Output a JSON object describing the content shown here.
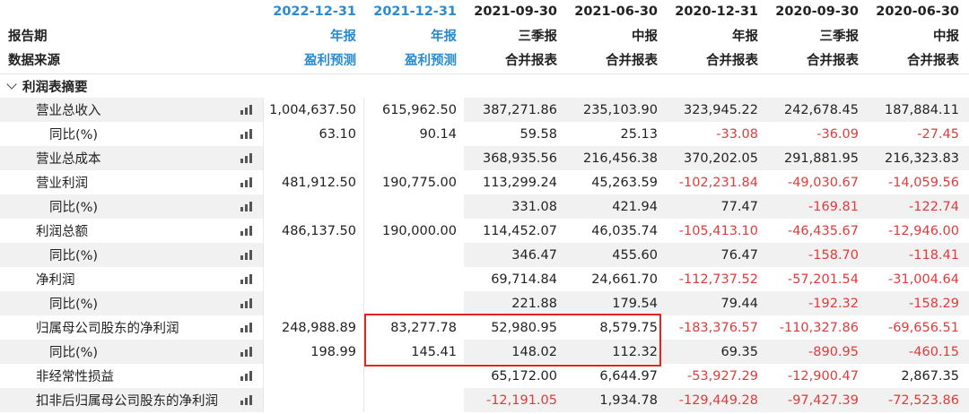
{
  "header": {
    "row_labels": [
      "报告期",
      "数据来源"
    ],
    "columns": [
      {
        "date": "2022-12-31",
        "period": "年报",
        "source": "盈利预测",
        "date_color": "#2a8bd0"
      },
      {
        "date": "2021-12-31",
        "period": "年报",
        "source": "盈利预测",
        "date_color": "#2a8bd0"
      },
      {
        "date": "2021-09-30",
        "period": "三季报",
        "source": "合并报表",
        "date_color": "#222222"
      },
      {
        "date": "2021-06-30",
        "period": "中报",
        "source": "合并报表",
        "date_color": "#222222"
      },
      {
        "date": "2020-12-31",
        "period": "年报",
        "source": "合并报表",
        "date_color": "#222222"
      },
      {
        "date": "2020-09-30",
        "period": "三季报",
        "source": "合并报表",
        "date_color": "#222222"
      },
      {
        "date": "2020-06-30",
        "period": "中报",
        "source": "合并报表",
        "date_color": "#222222"
      }
    ]
  },
  "section": {
    "title": "利润表摘要"
  },
  "rows": [
    {
      "label": "营业总收入",
      "indent": 1,
      "values": [
        "1,004,637.50",
        "615,962.50",
        "387,271.86",
        "235,103.90",
        "323,945.22",
        "242,678.45",
        "187,884.11"
      ]
    },
    {
      "label": "同比(%)",
      "indent": 2,
      "values": [
        "63.10",
        "90.14",
        "59.58",
        "25.13",
        "-33.08",
        "-36.09",
        "-27.45"
      ]
    },
    {
      "label": "营业总成本",
      "indent": 1,
      "values": [
        "",
        "",
        "368,935.56",
        "216,456.38",
        "370,202.05",
        "291,881.95",
        "216,323.83"
      ]
    },
    {
      "label": "营业利润",
      "indent": 1,
      "values": [
        "481,912.50",
        "190,775.00",
        "113,299.24",
        "45,263.59",
        "-102,231.84",
        "-49,030.67",
        "-14,059.56"
      ]
    },
    {
      "label": "同比(%)",
      "indent": 2,
      "values": [
        "",
        "",
        "331.08",
        "421.94",
        "77.47",
        "-169.81",
        "-122.74"
      ]
    },
    {
      "label": "利润总额",
      "indent": 1,
      "values": [
        "486,137.50",
        "190,000.00",
        "114,452.07",
        "46,035.74",
        "-105,413.10",
        "-46,435.67",
        "-12,946.00"
      ]
    },
    {
      "label": "同比(%)",
      "indent": 2,
      "values": [
        "",
        "",
        "346.47",
        "455.60",
        "76.47",
        "-158.70",
        "-118.41"
      ]
    },
    {
      "label": "净利润",
      "indent": 1,
      "values": [
        "",
        "",
        "69,714.84",
        "24,661.70",
        "-112,737.52",
        "-57,201.54",
        "-31,004.64"
      ]
    },
    {
      "label": "同比(%)",
      "indent": 2,
      "values": [
        "",
        "",
        "221.88",
        "179.54",
        "79.44",
        "-192.32",
        "-158.29"
      ]
    },
    {
      "label": "归属母公司股东的净利润",
      "indent": 1,
      "values": [
        "248,988.89",
        "83,277.78",
        "52,980.95",
        "8,579.75",
        "-183,376.57",
        "-110,327.86",
        "-69,656.51"
      ]
    },
    {
      "label": "同比(%)",
      "indent": 2,
      "values": [
        "198.99",
        "145.41",
        "148.02",
        "112.32",
        "69.35",
        "-890.95",
        "-460.15"
      ]
    },
    {
      "label": "非经常性损益",
      "indent": 1,
      "values": [
        "",
        "",
        "65,172.00",
        "6,644.97",
        "-53,927.29",
        "-12,900.47",
        "2,867.35"
      ]
    },
    {
      "label": "扣非后归属母公司股东的净利润",
      "indent": 1,
      "values": [
        "",
        "",
        "-12,191.05",
        "1,934.78",
        "-129,449.28",
        "-97,427.39",
        "-72,523.86"
      ]
    }
  ],
  "colors": {
    "negative": "#e03b3b",
    "forecast_header": "#2a8bd0",
    "highlight_border": "#e8231e",
    "row_band": "#f1f1f1"
  },
  "icons": {
    "row_chart": "bar-chart-icon",
    "section_toggle": "chevron-down-icon"
  }
}
